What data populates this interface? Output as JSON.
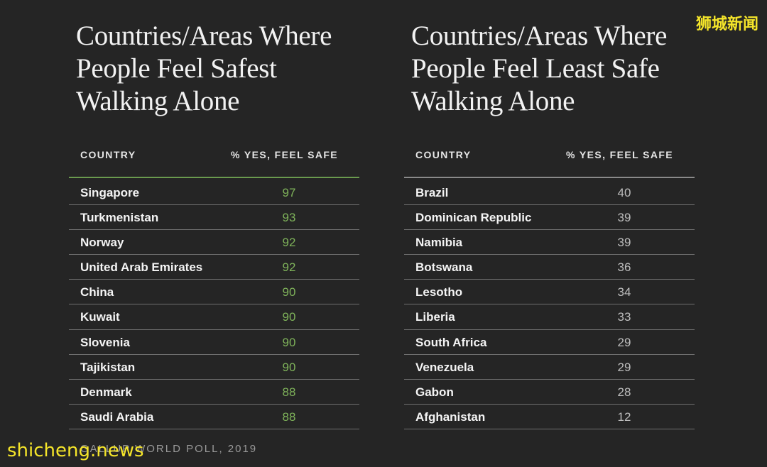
{
  "watermark_top": "狮城新闻",
  "watermark_bottom": "shicheng.news",
  "source": "GALLUP WORLD POLL, 2019",
  "colors": {
    "background": "#252525",
    "safe_value": "#7fb35a",
    "unsafe_value": "#bdbdbd",
    "safe_rule": "#6a9a4e"
  },
  "chart_data": [
    {
      "type": "table",
      "title": "Countries/Areas Where People Feel Safest Walking Alone",
      "title_lines": [
        "Countries/Areas Where",
        "People Feel Safest",
        "Walking Alone"
      ],
      "columns": [
        "COUNTRY",
        "% YES, FEEL SAFE"
      ],
      "rows": [
        {
          "country": "Singapore",
          "value": 97
        },
        {
          "country": "Turkmenistan",
          "value": 93
        },
        {
          "country": "Norway",
          "value": 92
        },
        {
          "country": "United Arab Emirates",
          "value": 92
        },
        {
          "country": "China",
          "value": 90
        },
        {
          "country": "Kuwait",
          "value": 90
        },
        {
          "country": "Slovenia",
          "value": 90
        },
        {
          "country": "Tajikistan",
          "value": 90
        },
        {
          "country": "Denmark",
          "value": 88
        },
        {
          "country": "Saudi Arabia",
          "value": 88
        }
      ]
    },
    {
      "type": "table",
      "title": "Countries/Areas Where People Feel Least Safe Walking Alone",
      "title_lines": [
        "Countries/Areas Where",
        "People Feel Least Safe",
        "Walking Alone"
      ],
      "columns": [
        "COUNTRY",
        "% YES, FEEL SAFE"
      ],
      "rows": [
        {
          "country": "Brazil",
          "value": 40
        },
        {
          "country": "Dominican Republic",
          "value": 39
        },
        {
          "country": "Namibia",
          "value": 39
        },
        {
          "country": "Botswana",
          "value": 36
        },
        {
          "country": "Lesotho",
          "value": 34
        },
        {
          "country": "Liberia",
          "value": 33
        },
        {
          "country": "South Africa",
          "value": 29
        },
        {
          "country": "Venezuela",
          "value": 29
        },
        {
          "country": "Gabon",
          "value": 28
        },
        {
          "country": "Afghanistan",
          "value": 12
        }
      ]
    }
  ]
}
